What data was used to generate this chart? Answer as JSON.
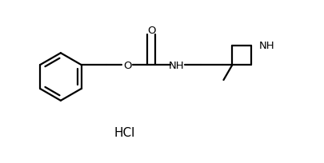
{
  "background_color": "#ffffff",
  "line_color": "#000000",
  "bond_lw": 1.6,
  "font_size_atom": 9.5,
  "font_size_hcl": 11,
  "hcl_text": "HCl",
  "fig_width": 4.06,
  "fig_height": 2.05,
  "dpi": 100,
  "xlim": [
    0,
    4.06
  ],
  "ylim": [
    0,
    2.05
  ]
}
